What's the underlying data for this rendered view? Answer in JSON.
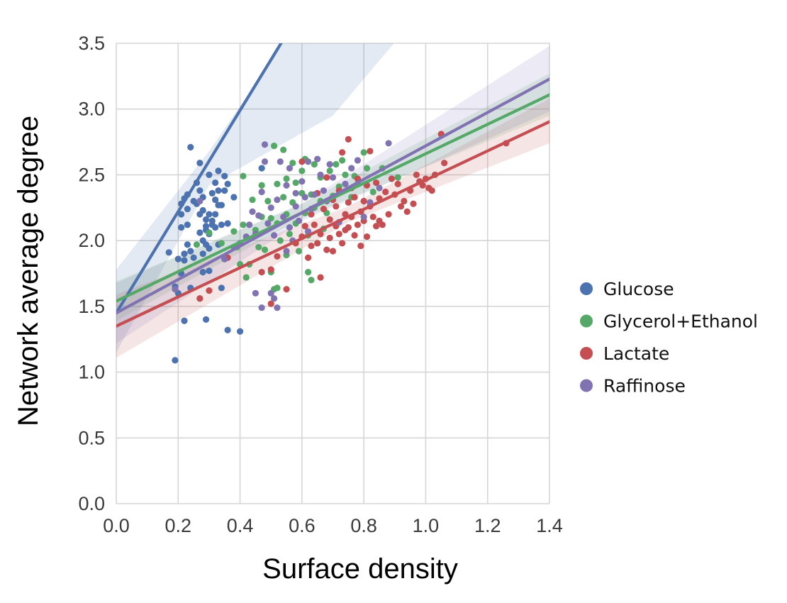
{
  "chart_data": {
    "type": "scatter",
    "xlabel": "Surface density",
    "ylabel": "Network average degree",
    "xlim": [
      0,
      1.4
    ],
    "ylim": [
      0,
      3.5
    ],
    "xticks": [
      "0.0",
      "0.2",
      "0.4",
      "0.6",
      "0.8",
      "1.0",
      "1.2",
      "1.4"
    ],
    "yticks": [
      "0.0",
      "0.5",
      "1.0",
      "1.5",
      "2.0",
      "2.5",
      "3.0",
      "3.5"
    ],
    "grid": true,
    "background": "#ffffff",
    "grid_color": "#d6d6d6",
    "legend_position": "right",
    "series": [
      {
        "name": "Glucose",
        "color": "#4c72b0",
        "fit": {
          "intercept": 1.45,
          "slope": 3.85
        },
        "band": [
          {
            "x": 0.0,
            "lo": 1.15,
            "hi": 1.78
          },
          {
            "x": 0.3,
            "lo": 2.42,
            "hi": 2.68
          },
          {
            "x": 0.7,
            "lo": 2.95,
            "hi": 4.05
          },
          {
            "x": 1.4,
            "lo": 4.9,
            "hi": 7.2
          }
        ],
        "points": [
          [
            0.17,
            1.91
          ],
          [
            0.19,
            1.09
          ],
          [
            0.19,
            1.65
          ],
          [
            0.2,
            1.6
          ],
          [
            0.2,
            1.86
          ],
          [
            0.21,
            1.75
          ],
          [
            0.21,
            2.1
          ],
          [
            0.21,
            2.2
          ],
          [
            0.21,
            2.28
          ],
          [
            0.22,
            1.9
          ],
          [
            0.22,
            1.85
          ],
          [
            0.22,
            1.39
          ],
          [
            0.22,
            2.32
          ],
          [
            0.23,
            2.12
          ],
          [
            0.23,
            2.24
          ],
          [
            0.23,
            2.35
          ],
          [
            0.23,
            1.97
          ],
          [
            0.24,
            2.71
          ],
          [
            0.24,
            1.92
          ],
          [
            0.24,
            1.64
          ],
          [
            0.25,
            2.3
          ],
          [
            0.25,
            1.87
          ],
          [
            0.26,
            2.28
          ],
          [
            0.26,
            2.44
          ],
          [
            0.27,
            2.59
          ],
          [
            0.27,
            2.38
          ],
          [
            0.27,
            2.2
          ],
          [
            0.27,
            2.06
          ],
          [
            0.27,
            1.56
          ],
          [
            0.28,
            2.33
          ],
          [
            0.28,
            2.23
          ],
          [
            0.28,
            2.0
          ],
          [
            0.28,
            1.9
          ],
          [
            0.28,
            1.76
          ],
          [
            0.29,
            2.16
          ],
          [
            0.29,
            2.11
          ],
          [
            0.29,
            2.08
          ],
          [
            0.29,
            1.97
          ],
          [
            0.29,
            1.4
          ],
          [
            0.3,
            2.5
          ],
          [
            0.3,
            2.2
          ],
          [
            0.3,
            2.05
          ],
          [
            0.3,
            1.94
          ],
          [
            0.3,
            1.77
          ],
          [
            0.31,
            2.36
          ],
          [
            0.31,
            2.15
          ],
          [
            0.31,
            2.12
          ],
          [
            0.32,
            2.44
          ],
          [
            0.32,
            2.31
          ],
          [
            0.32,
            2.2
          ],
          [
            0.32,
            2.1
          ],
          [
            0.33,
            2.53
          ],
          [
            0.33,
            2.38
          ],
          [
            0.33,
            2.27
          ],
          [
            0.33,
            1.97
          ],
          [
            0.34,
            2.27
          ],
          [
            0.34,
            2.12
          ],
          [
            0.34,
            1.64
          ],
          [
            0.35,
            2.49
          ],
          [
            0.35,
            2.38
          ],
          [
            0.35,
            1.86
          ],
          [
            0.36,
            2.43
          ],
          [
            0.36,
            2.13
          ],
          [
            0.36,
            1.32
          ],
          [
            0.38,
            2.33
          ],
          [
            0.4,
            1.31
          ],
          [
            0.47,
            2.55
          ]
        ]
      },
      {
        "name": "Glycerol+Ethanol",
        "color": "#55a868",
        "fit": {
          "intercept": 1.54,
          "slope": 1.12
        },
        "band": [
          {
            "x": 0.0,
            "lo": 1.39,
            "hi": 1.69
          },
          {
            "x": 0.6,
            "lo": 2.17,
            "hi": 2.28
          },
          {
            "x": 1.4,
            "lo": 2.95,
            "hi": 3.27
          }
        ],
        "points": [
          [
            0.26,
            1.97
          ],
          [
            0.3,
            2.06
          ],
          [
            0.34,
            1.98
          ],
          [
            0.38,
            2.07
          ],
          [
            0.39,
            1.95
          ],
          [
            0.4,
            1.82
          ],
          [
            0.41,
            2.49
          ],
          [
            0.41,
            2.12
          ],
          [
            0.42,
            1.72
          ],
          [
            0.43,
            1.82
          ],
          [
            0.44,
            2.31
          ],
          [
            0.45,
            2.08
          ],
          [
            0.46,
            1.95
          ],
          [
            0.47,
            2.42
          ],
          [
            0.47,
            2.18
          ],
          [
            0.48,
            1.93
          ],
          [
            0.49,
            2.3
          ],
          [
            0.5,
            2.17
          ],
          [
            0.5,
            1.76
          ],
          [
            0.51,
            2.72
          ],
          [
            0.51,
            1.63
          ],
          [
            0.52,
            2.43
          ],
          [
            0.52,
            2.13
          ],
          [
            0.52,
            1.64
          ],
          [
            0.53,
            2.0
          ],
          [
            0.54,
            2.69
          ],
          [
            0.54,
            2.33
          ],
          [
            0.55,
            2.47
          ],
          [
            0.55,
            2.2
          ],
          [
            0.55,
            1.89
          ],
          [
            0.56,
            2.05
          ],
          [
            0.57,
            2.59
          ],
          [
            0.57,
            2.29
          ],
          [
            0.58,
            2.44
          ],
          [
            0.58,
            2.13
          ],
          [
            0.59,
            1.92
          ],
          [
            0.6,
            2.53
          ],
          [
            0.6,
            2.36
          ],
          [
            0.61,
            2.62
          ],
          [
            0.61,
            2.21
          ],
          [
            0.62,
            1.76
          ],
          [
            0.62,
            2.04
          ],
          [
            0.63,
            1.7
          ],
          [
            0.63,
            2.35
          ],
          [
            0.64,
            2.58
          ],
          [
            0.64,
            2.25
          ],
          [
            0.65,
            1.98
          ],
          [
            0.66,
            2.48
          ],
          [
            0.66,
            2.3
          ],
          [
            0.67,
            2.09
          ],
          [
            0.68,
            2.21
          ],
          [
            0.69,
            2.53
          ],
          [
            0.7,
            2.34
          ],
          [
            0.71,
            2.58
          ],
          [
            0.72,
            2.41
          ],
          [
            0.73,
            2.61
          ],
          [
            0.74,
            2.5
          ],
          [
            0.76,
            2.33
          ],
          [
            0.77,
            2.49
          ],
          [
            0.78,
            2.43
          ],
          [
            0.8,
            2.67
          ],
          [
            0.81,
            2.55
          ],
          [
            0.83,
            2.37
          ],
          [
            0.86,
            2.55
          ],
          [
            0.91,
            2.48
          ]
        ]
      },
      {
        "name": "Lactate",
        "color": "#c44e52",
        "fit": {
          "intercept": 1.35,
          "slope": 1.11
        },
        "band": [
          {
            "x": 0.0,
            "lo": 1.11,
            "hi": 1.59
          },
          {
            "x": 0.75,
            "lo": 2.14,
            "hi": 2.26
          },
          {
            "x": 1.4,
            "lo": 2.74,
            "hi": 3.08
          }
        ],
        "points": [
          [
            0.27,
            1.56
          ],
          [
            0.3,
            1.62
          ],
          [
            0.36,
            1.87
          ],
          [
            0.47,
            1.76
          ],
          [
            0.5,
            1.52
          ],
          [
            0.5,
            1.78
          ],
          [
            0.52,
            1.88
          ],
          [
            0.55,
            1.63
          ],
          [
            0.58,
            1.98
          ],
          [
            0.6,
            2.03
          ],
          [
            0.6,
            2.6
          ],
          [
            0.61,
            2.11
          ],
          [
            0.62,
            1.87
          ],
          [
            0.63,
            2.2
          ],
          [
            0.63,
            1.96
          ],
          [
            0.64,
            2.12
          ],
          [
            0.65,
            2.36
          ],
          [
            0.65,
            1.98
          ],
          [
            0.66,
            1.72
          ],
          [
            0.66,
            2.05
          ],
          [
            0.67,
            2.24
          ],
          [
            0.68,
            2.48
          ],
          [
            0.68,
            1.93
          ],
          [
            0.69,
            2.16
          ],
          [
            0.69,
            2.02
          ],
          [
            0.7,
            2.31
          ],
          [
            0.7,
            1.92
          ],
          [
            0.71,
            2.11
          ],
          [
            0.71,
            2.26
          ],
          [
            0.72,
            2.38
          ],
          [
            0.72,
            2.05
          ],
          [
            0.73,
            1.98
          ],
          [
            0.73,
            2.67
          ],
          [
            0.74,
            2.2
          ],
          [
            0.74,
            2.08
          ],
          [
            0.75,
            2.29
          ],
          [
            0.75,
            2.77
          ],
          [
            0.75,
            2.1
          ],
          [
            0.76,
            2.4
          ],
          [
            0.76,
            2.18
          ],
          [
            0.77,
            2.04
          ],
          [
            0.77,
            2.33
          ],
          [
            0.78,
            2.12
          ],
          [
            0.78,
            2.47
          ],
          [
            0.79,
            2.22
          ],
          [
            0.79,
            1.96
          ],
          [
            0.8,
            2.3
          ],
          [
            0.8,
            2.15
          ],
          [
            0.81,
            2.42
          ],
          [
            0.81,
            2.03
          ],
          [
            0.82,
            2.68
          ],
          [
            0.82,
            2.26
          ],
          [
            0.83,
            2.18
          ],
          [
            0.84,
            2.44
          ],
          [
            0.84,
            2.11
          ],
          [
            0.85,
            2.32
          ],
          [
            0.85,
            2.15
          ],
          [
            0.86,
            2.12
          ],
          [
            0.87,
            2.37
          ],
          [
            0.88,
            2.2
          ],
          [
            0.89,
            2.47
          ],
          [
            0.9,
            2.35
          ],
          [
            0.91,
            2.43
          ],
          [
            0.92,
            2.26
          ],
          [
            0.93,
            2.3
          ],
          [
            0.94,
            2.22
          ],
          [
            0.95,
            2.38
          ],
          [
            0.96,
            2.28
          ],
          [
            0.97,
            2.5
          ],
          [
            0.98,
            2.45
          ],
          [
            0.99,
            2.42
          ],
          [
            1.0,
            2.47
          ],
          [
            1.01,
            2.4
          ],
          [
            1.02,
            2.38
          ],
          [
            1.03,
            2.5
          ],
          [
            1.05,
            2.81
          ],
          [
            1.06,
            2.59
          ],
          [
            1.26,
            2.74
          ]
        ]
      },
      {
        "name": "Raffinose",
        "color": "#8172b2",
        "fit": {
          "intercept": 1.45,
          "slope": 1.27
        },
        "band": [
          {
            "x": 0.0,
            "lo": 1.22,
            "hi": 1.68
          },
          {
            "x": 0.6,
            "lo": 2.15,
            "hi": 2.28
          },
          {
            "x": 1.4,
            "lo": 2.98,
            "hi": 3.48
          }
        ],
        "points": [
          [
            0.19,
            1.63
          ],
          [
            0.27,
            2.3
          ],
          [
            0.35,
            1.86
          ],
          [
            0.38,
            1.95
          ],
          [
            0.4,
            1.98
          ],
          [
            0.42,
            2.03
          ],
          [
            0.43,
            2.12
          ],
          [
            0.44,
            2.22
          ],
          [
            0.45,
            2.05
          ],
          [
            0.45,
            1.6
          ],
          [
            0.46,
            2.19
          ],
          [
            0.47,
            2.37
          ],
          [
            0.47,
            1.49
          ],
          [
            0.48,
            2.6
          ],
          [
            0.48,
            2.73
          ],
          [
            0.49,
            2.13
          ],
          [
            0.5,
            2.25
          ],
          [
            0.5,
            1.6
          ],
          [
            0.51,
            2.04
          ],
          [
            0.51,
            1.56
          ],
          [
            0.52,
            2.31
          ],
          [
            0.52,
            1.49
          ],
          [
            0.53,
            2.6
          ],
          [
            0.54,
            2.18
          ],
          [
            0.55,
            2.42
          ],
          [
            0.55,
            1.92
          ],
          [
            0.56,
            2.1
          ],
          [
            0.56,
            2.55
          ],
          [
            0.57,
            2.0
          ],
          [
            0.58,
            2.36
          ],
          [
            0.58,
            2.26
          ],
          [
            0.59,
            2.15
          ],
          [
            0.6,
            2.45
          ],
          [
            0.61,
            2.33
          ],
          [
            0.62,
            2.07
          ],
          [
            0.62,
            2.6
          ],
          [
            0.63,
            2.24
          ],
          [
            0.64,
            2.35
          ],
          [
            0.65,
            2.62
          ],
          [
            0.66,
            2.5
          ],
          [
            0.67,
            2.38
          ],
          [
            0.68,
            2.3
          ],
          [
            0.69,
            2.58
          ],
          [
            0.7,
            2.48
          ],
          [
            0.72,
            2.14
          ],
          [
            0.74,
            2.43
          ],
          [
            0.76,
            2.55
          ],
          [
            0.78,
            2.61
          ],
          [
            0.8,
            2.18
          ],
          [
            0.82,
            2.29
          ],
          [
            0.85,
            2.4
          ],
          [
            0.88,
            2.74
          ]
        ]
      }
    ]
  }
}
